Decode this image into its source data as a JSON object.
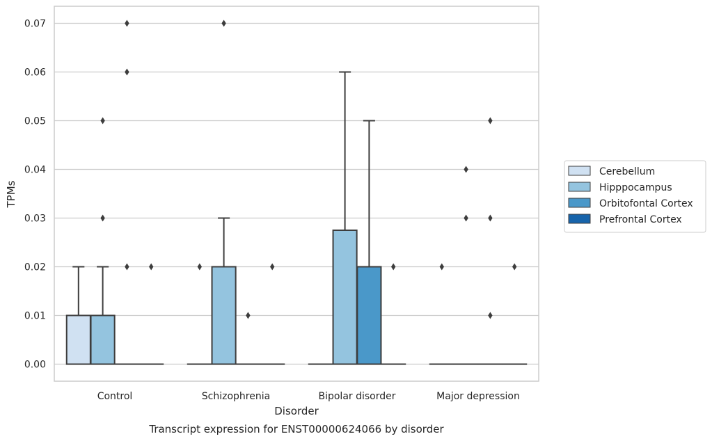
{
  "chart_data": {
    "type": "box",
    "xlabel": "Disorder",
    "ylabel": "TPMs",
    "caption": "Transcript expression for ENST00000624066 by disorder",
    "categories": [
      "Control",
      "Schizophrenia",
      "Bipolar disorder",
      "Major depression"
    ],
    "yticks": [
      "0.00",
      "0.01",
      "0.02",
      "0.03",
      "0.04",
      "0.05",
      "0.06",
      "0.07"
    ],
    "ylim": [
      -0.0035,
      0.0735
    ],
    "grid": true,
    "legend_placement": "right",
    "series": [
      {
        "name": "Cerebellum",
        "color": "#d0e1f2",
        "boxes": [
          {
            "q1": 0.0,
            "median": 0.0,
            "q3": 0.01,
            "whisker_low": 0.0,
            "whisker_high": 0.02,
            "outliers": []
          },
          {
            "q1": 0.0,
            "median": 0.0,
            "q3": 0.0,
            "whisker_low": 0.0,
            "whisker_high": 0.0,
            "outliers": [
              0.02
            ]
          },
          {
            "q1": 0.0,
            "median": 0.0,
            "q3": 0.0,
            "whisker_low": 0.0,
            "whisker_high": 0.0,
            "outliers": []
          },
          {
            "q1": 0.0,
            "median": 0.0,
            "q3": 0.0,
            "whisker_low": 0.0,
            "whisker_high": 0.0,
            "outliers": [
              0.02
            ]
          }
        ]
      },
      {
        "name": "Hipppocampus",
        "color": "#94c4df",
        "boxes": [
          {
            "q1": 0.0,
            "median": 0.0,
            "q3": 0.01,
            "whisker_low": 0.0,
            "whisker_high": 0.02,
            "outliers": [
              0.03,
              0.05
            ]
          },
          {
            "q1": 0.0,
            "median": 0.0,
            "q3": 0.02,
            "whisker_low": 0.0,
            "whisker_high": 0.03,
            "outliers": [
              0.07
            ]
          },
          {
            "q1": 0.0,
            "median": 0.0,
            "q3": 0.0275,
            "whisker_low": 0.0,
            "whisker_high": 0.06,
            "outliers": []
          },
          {
            "q1": 0.0,
            "median": 0.0,
            "q3": 0.0,
            "whisker_low": 0.0,
            "whisker_high": 0.0,
            "outliers": [
              0.03,
              0.04
            ]
          }
        ]
      },
      {
        "name": "Orbitofontal Cortex",
        "color": "#4a98c9",
        "boxes": [
          {
            "q1": 0.0,
            "median": 0.0,
            "q3": 0.0,
            "whisker_low": 0.0,
            "whisker_high": 0.0,
            "outliers": [
              0.02,
              0.06,
              0.07
            ]
          },
          {
            "q1": 0.0,
            "median": 0.0,
            "q3": 0.0,
            "whisker_low": 0.0,
            "whisker_high": 0.0,
            "outliers": [
              0.01
            ]
          },
          {
            "q1": 0.0,
            "median": 0.0,
            "q3": 0.02,
            "whisker_low": 0.0,
            "whisker_high": 0.05,
            "outliers": []
          },
          {
            "q1": 0.0,
            "median": 0.0,
            "q3": 0.0,
            "whisker_low": 0.0,
            "whisker_high": 0.0,
            "outliers": [
              0.01,
              0.03,
              0.05
            ]
          }
        ]
      },
      {
        "name": "Prefrontal Cortex",
        "color": "#1764ab",
        "boxes": [
          {
            "q1": 0.0,
            "median": 0.0,
            "q3": 0.0,
            "whisker_low": 0.0,
            "whisker_high": 0.0,
            "outliers": [
              0.02
            ]
          },
          {
            "q1": 0.0,
            "median": 0.0,
            "q3": 0.0,
            "whisker_low": 0.0,
            "whisker_high": 0.0,
            "outliers": [
              0.02
            ]
          },
          {
            "q1": 0.0,
            "median": 0.0,
            "q3": 0.0,
            "whisker_low": 0.0,
            "whisker_high": 0.0,
            "outliers": [
              0.02
            ]
          },
          {
            "q1": 0.0,
            "median": 0.0,
            "q3": 0.0,
            "whisker_low": 0.0,
            "whisker_high": 0.0,
            "outliers": [
              0.02
            ]
          }
        ]
      }
    ]
  }
}
